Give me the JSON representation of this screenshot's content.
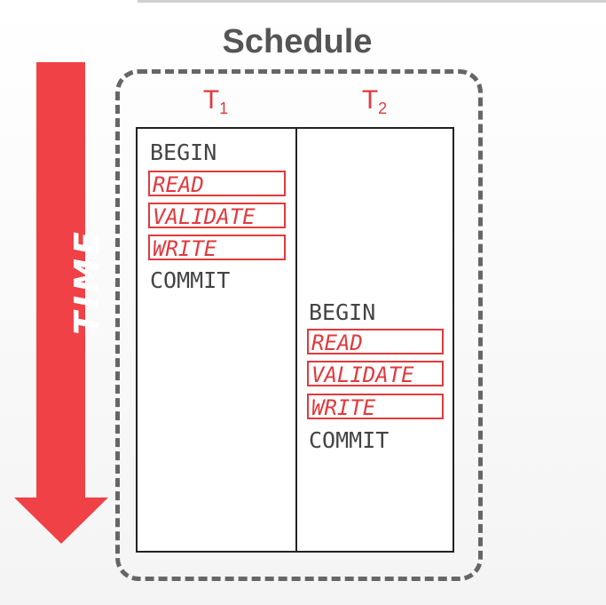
{
  "title": "Schedule",
  "time_label": "TIME",
  "transactions": [
    {
      "name": "T",
      "sub": "1",
      "begin": "BEGIN",
      "phases": [
        "READ",
        "VALIDATE",
        "WRITE"
      ],
      "commit": "COMMIT"
    },
    {
      "name": "T",
      "sub": "2",
      "begin": "BEGIN",
      "phases": [
        "READ",
        "VALIDATE",
        "WRITE"
      ],
      "commit": "COMMIT"
    }
  ],
  "colors": {
    "accent": "#e03a3e",
    "text": "#444444",
    "border": "#666666"
  }
}
